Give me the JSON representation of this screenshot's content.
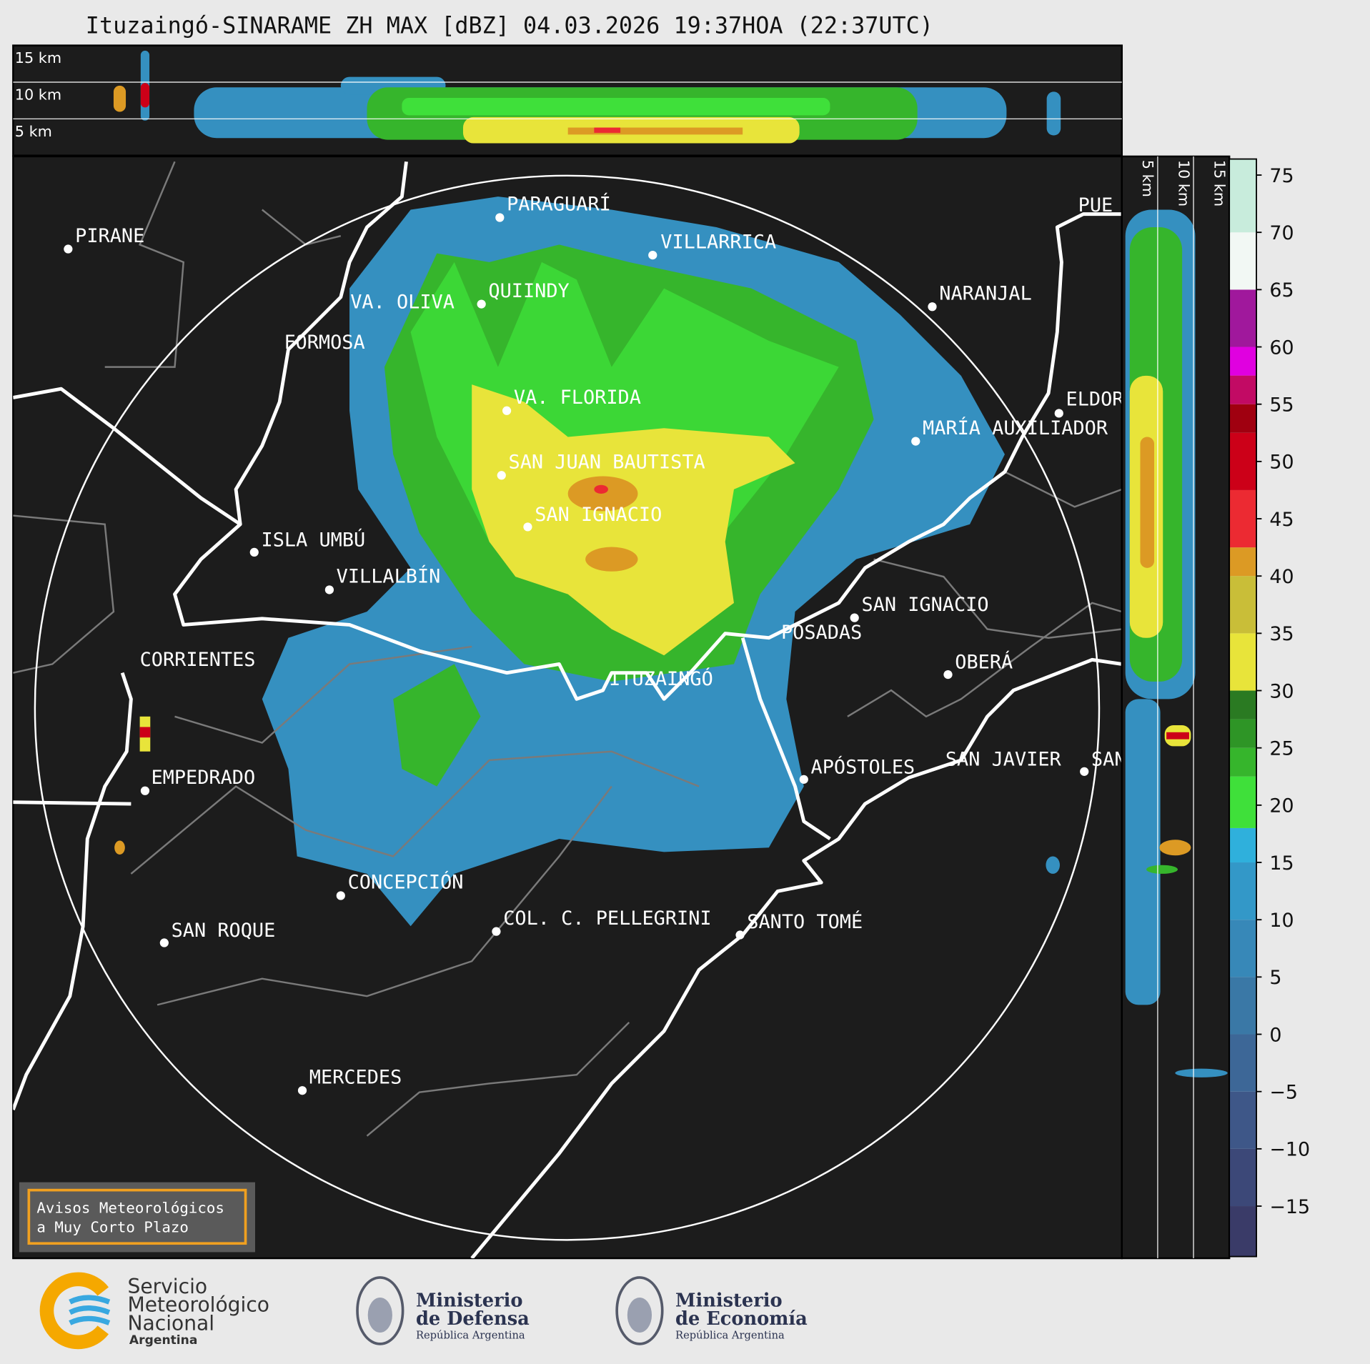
{
  "title": "Ituzaingó-SINARAME ZH MAX [dBZ] 04.03.2026 19:37HOA (22:37UTC)",
  "cross_section_top": {
    "altitude_labels": [
      "15 km",
      "10 km",
      "5 km"
    ]
  },
  "cross_section_right": {
    "altitude_labels": [
      "5 km",
      "10 km",
      "15 km"
    ]
  },
  "map": {
    "cities": [
      "PARAGUARÍ",
      "VILLARRICA",
      "PIRANE",
      "QUIINDY",
      "VA. OLIVA",
      "FORMOSA",
      "NARANJAL",
      "VA. FLORIDA",
      "ELDOR",
      "MARÍA AUXILIADOR",
      "SAN JUAN BAUTISTA",
      "SAN IGNACIO",
      "ISLA UMBÚ",
      "VILLALBÍN",
      "SAN IGNACIO",
      "POSADAS",
      "CORRIENTES",
      "OBERÁ",
      "ITUZAINGÓ",
      "APÓSTOLES",
      "SAN JAVIER",
      "SAN",
      "EMPEDRADO",
      "CONCEPCIÓN",
      "COL. C. PELLEGRINI",
      "SANTO TOMÉ",
      "SAN ROQUE",
      "MERCEDES",
      "PUE"
    ]
  },
  "colorbar": {
    "ylim": [
      -19.4,
      76.4
    ],
    "ticks": [
      75,
      70,
      65,
      60,
      55,
      50,
      45,
      40,
      35,
      30,
      25,
      20,
      15,
      10,
      5,
      0,
      {
        "value": -5,
        "label": "−5"
      },
      {
        "value": -10,
        "label": "−10"
      },
      {
        "value": -15,
        "label": "−15"
      }
    ],
    "bounds": [
      -20,
      -15,
      -10,
      -5,
      0,
      5,
      10,
      15,
      18,
      22.5,
      25,
      27.5,
      30,
      35,
      40,
      42.5,
      47.5,
      52.5,
      55,
      57.5,
      60,
      65,
      70,
      77
    ],
    "colors": [
      "#3a3b68",
      "#3c4878",
      "#3e5788",
      "#3d6797",
      "#3a78a6",
      "#3788b8",
      "#3398c8",
      "#2fb0dc",
      "#3fe03a",
      "#36b52c",
      "#2e9526",
      "#2a7a22",
      "#e8e43a",
      "#c9be38",
      "#dc9a24",
      "#ec2a32",
      "#cc0018",
      "#a00010",
      "#c20a64",
      "#e000e0",
      "#a0189c",
      "#f2f8f4",
      "#c8ecdc",
      "#8ed8b8"
    ]
  },
  "notice": {
    "lines": [
      "Avisos Meteorológicos",
      "a Muy Corto Plazo"
    ]
  },
  "logos": {
    "smn": [
      "Servicio",
      "Meteorológico",
      "Nacional",
      "Argentina"
    ],
    "defensa": [
      "Ministerio",
      "de Defensa",
      "República Argentina"
    ],
    "economia": [
      "Ministerio",
      "de Economía",
      "República Argentina"
    ]
  }
}
